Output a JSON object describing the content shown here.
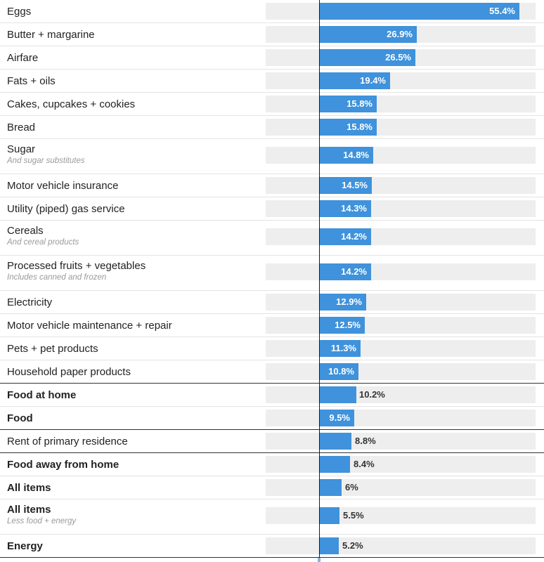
{
  "chart_data": {
    "type": "bar",
    "orientation": "horizontal",
    "xlim": [
      0,
      60
    ],
    "grid": false,
    "unit_suffix": "%",
    "rows": [
      {
        "label": "Eggs",
        "value": 55.4,
        "display": "55.4%"
      },
      {
        "label": "Butter + margarine",
        "value": 26.9,
        "display": "26.9%"
      },
      {
        "label": "Airfare",
        "value": 26.5,
        "display": "26.5%"
      },
      {
        "label": "Fats + oils",
        "value": 19.4,
        "display": "19.4%"
      },
      {
        "label": "Cakes, cupcakes + cookies",
        "value": 15.8,
        "display": "15.8%"
      },
      {
        "label": "Bread",
        "value": 15.8,
        "display": "15.8%"
      },
      {
        "label": "Sugar",
        "sublabel": "And sugar substitutes",
        "value": 14.8,
        "display": "14.8%"
      },
      {
        "label": "Motor vehicle insurance",
        "value": 14.5,
        "display": "14.5%"
      },
      {
        "label": "Utility (piped) gas service",
        "value": 14.3,
        "display": "14.3%"
      },
      {
        "label": "Cereals",
        "sublabel": "And cereal products",
        "value": 14.2,
        "display": "14.2%"
      },
      {
        "label": "Processed fruits + vegetables",
        "sublabel": "Includes canned and frozen",
        "value": 14.2,
        "display": "14.2%"
      },
      {
        "label": "Electricity",
        "value": 12.9,
        "display": "12.9%"
      },
      {
        "label": "Motor vehicle maintenance + repair",
        "value": 12.5,
        "display": "12.5%"
      },
      {
        "label": "Pets + pet products",
        "value": 11.3,
        "display": "11.3%"
      },
      {
        "label": "Household paper products",
        "value": 10.8,
        "display": "10.8%"
      },
      {
        "label": "Food at home",
        "value": 10.2,
        "display": "10.2%",
        "bold": true
      },
      {
        "label": "Food",
        "value": 9.5,
        "display": "9.5%",
        "bold": true
      },
      {
        "label": "Rent of primary residence",
        "value": 8.8,
        "display": "8.8%"
      },
      {
        "label": "Food away from home",
        "value": 8.4,
        "display": "8.4%",
        "bold": true
      },
      {
        "label": "All items",
        "value": 6,
        "display": "6%",
        "bold": true
      },
      {
        "label": "All items",
        "sublabel": "Less food + energy",
        "value": 5.5,
        "display": "5.5%",
        "bold": true
      },
      {
        "label": "Energy",
        "value": 5.2,
        "display": "5.2%",
        "bold": true
      }
    ],
    "bar_color": "#3f92db",
    "track_color": "#eeeeee"
  }
}
